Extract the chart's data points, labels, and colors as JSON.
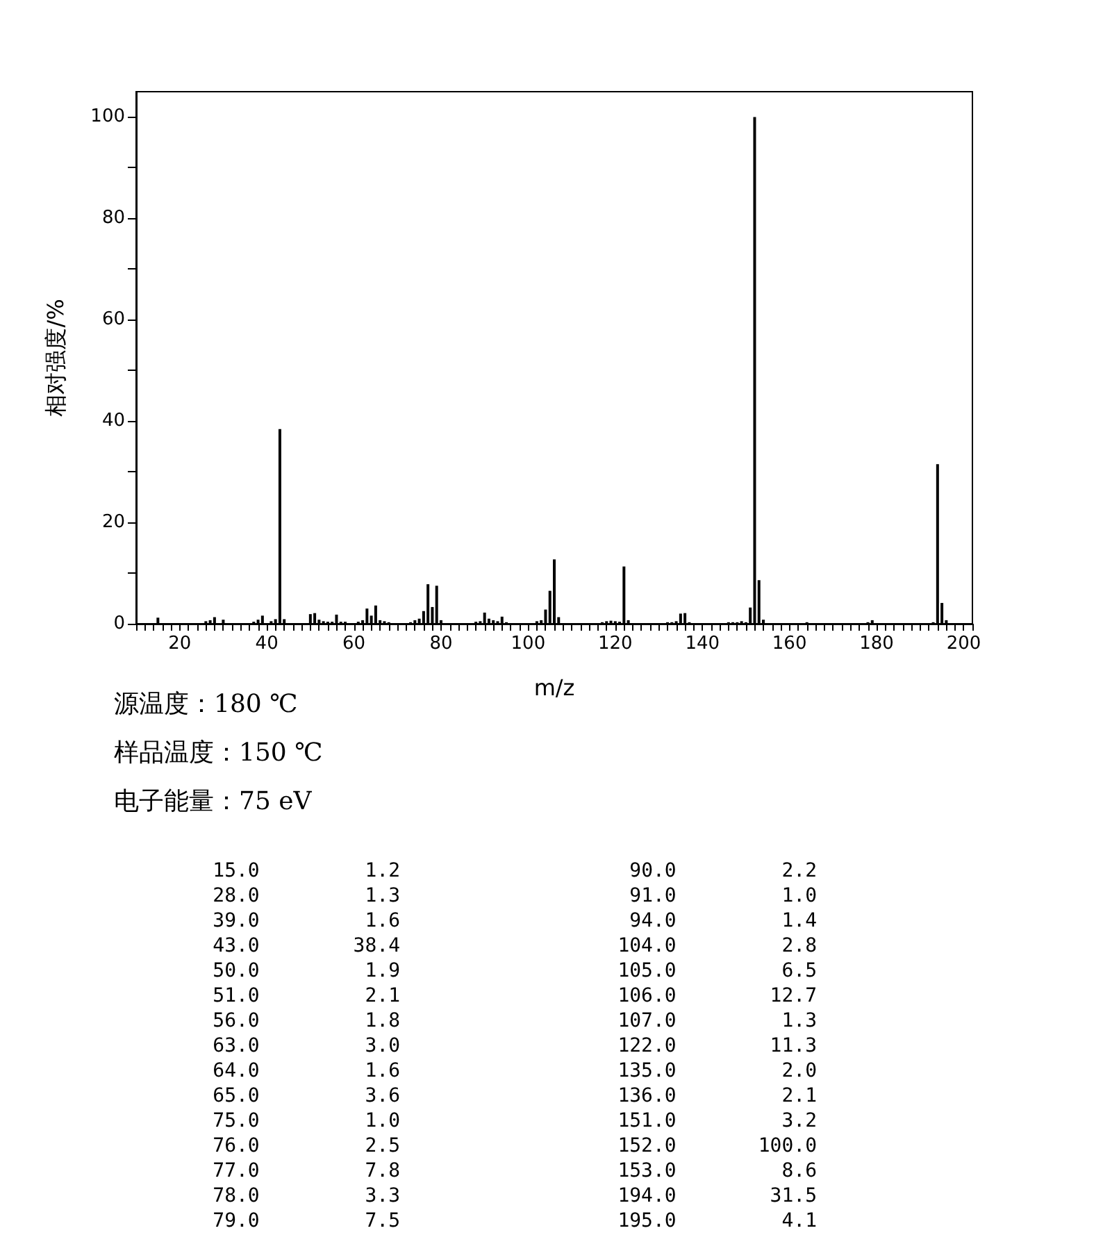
{
  "chart_data": {
    "type": "bar",
    "xlabel": "m/z",
    "ylabel": "相对强度/%",
    "annotations": [
      "源温度：180 ℃",
      "样品温度：150 ℃",
      "电子能量：75 eV",
      "15.0         1.2",
      "28.0         1.3",
      "39.0         1.6",
      "43.0        38.4",
      "50.0         1.9",
      "51.0         2.1",
      "56.0         1.8",
      "63.0         3.0",
      "64.0         1.6",
      "65.0         3.6",
      "75.0         1.0",
      "76.0         2.5",
      "77.0         7.8",
      "78.0         3.3",
      "79.0         7.5",
      "90.0         2.2",
      "91.0         1.0",
      "94.0         1.4",
      "104.0         2.8",
      "105.0         6.5",
      "106.0        12.7",
      "107.0         1.3",
      "122.0        11.3",
      "135.0         2.0",
      "136.0         2.1",
      "151.0         3.2",
      "152.0       100.0",
      "153.0         8.6",
      "194.0        31.5",
      "195.0         4.1"
    ],
    "x": [
      15,
      26,
      27,
      28,
      30,
      37,
      38,
      39,
      41,
      42,
      43,
      44,
      50,
      51,
      52,
      53,
      54,
      55,
      56,
      57,
      58,
      61,
      62,
      63,
      64,
      65,
      66,
      67,
      68,
      73,
      74,
      75,
      76,
      77,
      78,
      79,
      80,
      88,
      89,
      90,
      91,
      92,
      93,
      94,
      95,
      102,
      103,
      104,
      105,
      106,
      107,
      117,
      118,
      119,
      120,
      121,
      122,
      123,
      132,
      133,
      134,
      135,
      136,
      137,
      146,
      147,
      148,
      149,
      150,
      151,
      152,
      153,
      154,
      164,
      178,
      179,
      193,
      194,
      195,
      196
    ],
    "values": [
      1.2,
      0.5,
      0.7,
      1.3,
      0.8,
      0.4,
      0.8,
      1.6,
      0.5,
      0.9,
      38.4,
      0.9,
      1.9,
      2.1,
      0.8,
      0.5,
      0.4,
      0.4,
      1.8,
      0.4,
      0.4,
      0.4,
      0.7,
      3.0,
      1.6,
      3.6,
      0.7,
      0.5,
      0.3,
      0.3,
      0.7,
      1.0,
      2.5,
      7.8,
      3.3,
      7.5,
      0.7,
      0.4,
      0.5,
      2.2,
      1.0,
      0.7,
      0.5,
      1.4,
      0.3,
      0.5,
      0.7,
      2.8,
      6.5,
      12.7,
      1.3,
      0.3,
      0.5,
      0.6,
      0.5,
      0.4,
      11.3,
      0.7,
      0.3,
      0.3,
      0.5,
      2.0,
      2.1,
      0.3,
      0.3,
      0.3,
      0.3,
      0.5,
      0.3,
      3.2,
      100.0,
      8.6,
      0.8,
      0.3,
      0.3,
      0.7,
      0.3,
      31.5,
      4.1,
      0.7
    ],
    "color": "#000000",
    "xlim": [
      10,
      202
    ],
    "xticks": [
      {
        "value": 10,
        "label": null
      },
      {
        "value": 12,
        "label": null
      },
      {
        "value": 14,
        "label": null
      },
      {
        "value": 16,
        "label": null
      },
      {
        "value": 18,
        "label": null
      },
      20,
      {
        "value": 22,
        "label": null
      },
      {
        "value": 24,
        "label": null
      },
      {
        "value": 26,
        "label": null
      },
      {
        "value": 28,
        "label": null
      },
      {
        "value": 30,
        "label": null
      },
      {
        "value": 32,
        "label": null
      },
      {
        "value": 34,
        "label": null
      },
      {
        "value": 36,
        "label": null
      },
      {
        "value": 38,
        "label": null
      },
      40,
      {
        "value": 42,
        "label": null
      },
      {
        "value": 44,
        "label": null
      },
      {
        "value": 46,
        "label": null
      },
      {
        "value": 48,
        "label": null
      },
      {
        "value": 50,
        "label": null
      },
      {
        "value": 52,
        "label": null
      },
      {
        "value": 54,
        "label": null
      },
      {
        "value": 56,
        "label": null
      },
      {
        "value": 58,
        "label": null
      },
      60,
      {
        "value": 62,
        "label": null
      },
      {
        "value": 64,
        "label": null
      },
      {
        "value": 66,
        "label": null
      },
      {
        "value": 68,
        "label": null
      },
      {
        "value": 70,
        "label": null
      },
      {
        "value": 72,
        "label": null
      },
      {
        "value": 74,
        "label": null
      },
      {
        "value": 76,
        "label": null
      },
      {
        "value": 78,
        "label": null
      },
      80,
      {
        "value": 82,
        "label": null
      },
      {
        "value": 84,
        "label": null
      },
      {
        "value": 86,
        "label": null
      },
      {
        "value": 88,
        "label": null
      },
      {
        "value": 90,
        "label": null
      },
      {
        "value": 92,
        "label": null
      },
      {
        "value": 94,
        "label": null
      },
      {
        "value": 96,
        "label": null
      },
      {
        "value": 98,
        "label": null
      },
      100,
      {
        "value": 102,
        "label": null
      },
      {
        "value": 104,
        "label": null
      },
      {
        "value": 106,
        "label": null
      },
      {
        "value": 108,
        "label": null
      },
      {
        "value": 110,
        "label": null
      },
      {
        "value": 112,
        "label": null
      },
      {
        "value": 114,
        "label": null
      },
      {
        "value": 116,
        "label": null
      },
      {
        "value": 118,
        "label": null
      },
      120,
      {
        "value": 122,
        "label": null
      },
      {
        "value": 124,
        "label": null
      },
      {
        "value": 126,
        "label": null
      },
      {
        "value": 128,
        "label": null
      },
      {
        "value": 130,
        "label": null
      },
      {
        "value": 132,
        "label": null
      },
      {
        "value": 134,
        "label": null
      },
      {
        "value": 136,
        "label": null
      },
      {
        "value": 138,
        "label": null
      },
      140,
      {
        "value": 142,
        "label": null
      },
      {
        "value": 144,
        "label": null
      },
      {
        "value": 146,
        "label": null
      },
      {
        "value": 148,
        "label": null
      },
      {
        "value": 150,
        "label": null
      },
      {
        "value": 152,
        "label": null
      },
      {
        "value": 154,
        "label": null
      },
      {
        "value": 156,
        "label": null
      },
      {
        "value": 158,
        "label": null
      },
      160,
      {
        "value": 162,
        "label": null
      },
      {
        "value": 164,
        "label": null
      },
      {
        "value": 166,
        "label": null
      },
      {
        "value": 168,
        "label": null
      },
      {
        "value": 170,
        "label": null
      },
      {
        "value": 172,
        "label": null
      },
      {
        "value": 174,
        "label": null
      },
      {
        "value": 176,
        "label": null
      },
      {
        "value": 178,
        "label": null
      },
      180,
      {
        "value": 182,
        "label": null
      },
      {
        "value": 184,
        "label": null
      },
      {
        "value": 186,
        "label": null
      },
      {
        "value": 188,
        "label": null
      },
      {
        "value": 190,
        "label": null
      },
      {
        "value": 192,
        "label": null
      },
      {
        "value": 194,
        "label": null
      },
      {
        "value": 196,
        "label": null
      },
      {
        "value": 198,
        "label": null
      },
      200,
      {
        "value": 202,
        "label": null
      }
    ],
    "ylim": [
      0,
      105
    ],
    "yticks": [
      0,
      {
        "value": 10,
        "label": null
      },
      20,
      {
        "value": 30,
        "label": null
      },
      40,
      {
        "value": 50,
        "label": null
      },
      60,
      {
        "value": 70,
        "label": null
      },
      80,
      {
        "value": 90,
        "label": null
      },
      100
    ],
    "grid": false
  }
}
